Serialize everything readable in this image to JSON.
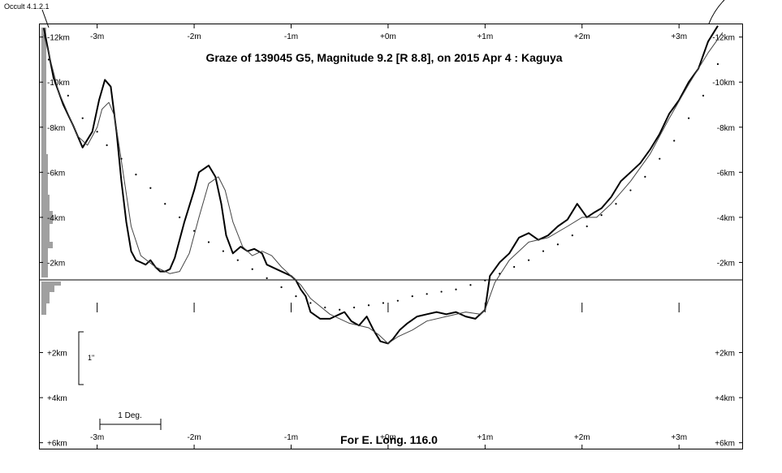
{
  "chart_data": {
    "type": "line",
    "program_label": "Occult 4.1.2.1",
    "title": "Graze of  139045 G5,  Magnitude 9.2 [R 8.8],  on 2015 Apr  4  :  Kaguya",
    "footer": "For E. Long. 116.0",
    "x_unit": "m",
    "y_unit": "km",
    "xlim": [
      -3.6,
      3.66
    ],
    "ylim": [
      -12.6,
      6.3
    ],
    "x_ticks": [
      {
        "value": -3,
        "label": "-3m"
      },
      {
        "value": -2,
        "label": "-2m"
      },
      {
        "value": -1,
        "label": "-1m"
      },
      {
        "value": 0,
        "label": "+0m"
      },
      {
        "value": 1,
        "label": "+1m"
      },
      {
        "value": 2,
        "label": "+2m"
      },
      {
        "value": 3,
        "label": "+3m"
      }
    ],
    "y_ticks": [
      {
        "value": -12,
        "label": "-12km"
      },
      {
        "value": -10,
        "label": "-10km"
      },
      {
        "value": -8,
        "label": "-8km"
      },
      {
        "value": -6,
        "label": "-6km"
      },
      {
        "value": -4,
        "label": "-4km"
      },
      {
        "value": -2,
        "label": "-2km"
      },
      {
        "value": 2,
        "label": "+2km"
      },
      {
        "value": 4,
        "label": "+4km"
      },
      {
        "value": 6,
        "label": "+6km"
      }
    ],
    "scale_bar_arcsec": "1\"",
    "scale_bar_deg": "1 Deg.",
    "series": [
      {
        "style": "heavy",
        "x": [
          -3.55,
          -3.45,
          -3.35,
          -3.25,
          -3.15,
          -3.05,
          -2.98,
          -2.92,
          -2.86,
          -2.8,
          -2.75,
          -2.7,
          -2.65,
          -2.6,
          -2.55,
          -2.5,
          -2.45,
          -2.4,
          -2.35,
          -2.3,
          -2.25,
          -2.2,
          -2.1,
          -2.0,
          -1.95,
          -1.85,
          -1.78,
          -1.72,
          -1.67,
          -1.6,
          -1.52,
          -1.45,
          -1.38,
          -1.3,
          -1.25,
          -1.15,
          -1.05,
          -1.0,
          -0.95,
          -0.9,
          -0.85,
          -0.8,
          -0.7,
          -0.6,
          -0.5,
          -0.45,
          -0.38,
          -0.3,
          -0.22,
          -0.15,
          -0.08,
          0.0,
          0.05,
          0.12,
          0.2,
          0.3,
          0.4,
          0.5,
          0.6,
          0.7,
          0.8,
          0.9,
          1.0,
          1.05,
          1.15,
          1.25,
          1.35,
          1.45,
          1.55,
          1.65,
          1.75,
          1.85,
          1.95,
          2.0,
          2.05,
          2.12,
          2.2,
          2.3,
          2.4,
          2.5,
          2.6,
          2.7,
          2.8,
          2.9,
          3.0,
          3.1,
          3.2,
          3.3,
          3.4
        ],
        "y": [
          -12.4,
          -10.2,
          -9.0,
          -8.1,
          -7.1,
          -7.8,
          -9.2,
          -10.1,
          -9.8,
          -7.8,
          -5.6,
          -3.8,
          -2.5,
          -2.1,
          -2.0,
          -1.9,
          -2.1,
          -1.8,
          -1.6,
          -1.6,
          -1.7,
          -2.2,
          -3.8,
          -5.2,
          -6.0,
          -6.3,
          -5.8,
          -4.6,
          -3.2,
          -2.4,
          -2.7,
          -2.5,
          -2.6,
          -2.4,
          -1.9,
          -1.7,
          -1.5,
          -1.4,
          -1.2,
          -0.8,
          -0.5,
          0.2,
          0.5,
          0.5,
          0.3,
          0.2,
          0.6,
          0.8,
          0.4,
          1.0,
          1.5,
          1.6,
          1.4,
          1.0,
          0.7,
          0.4,
          0.3,
          0.2,
          0.3,
          0.2,
          0.4,
          0.5,
          0.1,
          -1.4,
          -2.0,
          -2.4,
          -3.1,
          -3.3,
          -3.0,
          -3.2,
          -3.6,
          -3.9,
          -4.6,
          -4.3,
          -4.0,
          -4.2,
          -4.4,
          -4.9,
          -5.6,
          -6.0,
          -6.4,
          -7.0,
          -7.7,
          -8.6,
          -9.2,
          -10.0,
          -10.6,
          -11.8,
          -12.5
        ]
      },
      {
        "style": "smooth",
        "x": [
          -3.55,
          -3.4,
          -3.2,
          -3.1,
          -3.0,
          -2.95,
          -2.88,
          -2.82,
          -2.75,
          -2.65,
          -2.55,
          -2.4,
          -2.25,
          -2.15,
          -2.05,
          -1.95,
          -1.85,
          -1.75,
          -1.68,
          -1.6,
          -1.5,
          -1.4,
          -1.3,
          -1.2,
          -1.1,
          -1.0,
          -0.9,
          -0.8,
          -0.6,
          -0.4,
          -0.2,
          -0.1,
          0.0,
          0.1,
          0.25,
          0.4,
          0.6,
          0.8,
          0.95,
          1.0,
          1.1,
          1.25,
          1.45,
          1.65,
          1.85,
          2.0,
          2.15,
          2.3,
          2.5,
          2.7,
          2.9,
          3.1,
          3.3,
          3.45
        ],
        "y": [
          -12.1,
          -9.6,
          -7.6,
          -7.2,
          -8.0,
          -8.8,
          -9.1,
          -8.5,
          -6.5,
          -3.6,
          -2.3,
          -1.8,
          -1.5,
          -1.6,
          -2.4,
          -4.0,
          -5.5,
          -5.8,
          -5.2,
          -3.8,
          -2.7,
          -2.3,
          -2.5,
          -2.3,
          -1.8,
          -1.4,
          -1.0,
          -0.4,
          0.3,
          0.7,
          0.9,
          1.2,
          1.6,
          1.3,
          1.0,
          0.6,
          0.4,
          0.2,
          0.3,
          0.1,
          -1.1,
          -2.1,
          -2.9,
          -3.1,
          -3.6,
          -4.0,
          -4.0,
          -4.6,
          -5.6,
          -6.8,
          -8.4,
          -9.9,
          -11.3,
          -12.2
        ]
      },
      {
        "style": "dotted",
        "x": [
          -3.5,
          -3.3,
          -3.15,
          -3.0,
          -2.9,
          -2.75,
          -2.6,
          -2.45,
          -2.3,
          -2.15,
          -2.0,
          -1.85,
          -1.7,
          -1.55,
          -1.4,
          -1.25,
          -1.1,
          -0.95,
          -0.8,
          -0.65,
          -0.5,
          -0.35,
          -0.2,
          -0.05,
          0.1,
          0.25,
          0.4,
          0.55,
          0.7,
          0.85,
          1.0,
          1.15,
          1.3,
          1.45,
          1.6,
          1.75,
          1.9,
          2.05,
          2.2,
          2.35,
          2.5,
          2.65,
          2.8,
          2.95,
          3.1,
          3.25,
          3.4
        ],
        "y": [
          -11.0,
          -9.4,
          -8.4,
          -7.8,
          -7.2,
          -6.6,
          -5.9,
          -5.3,
          -4.6,
          -4.0,
          -3.4,
          -2.9,
          -2.5,
          -2.1,
          -1.7,
          -1.3,
          -0.9,
          -0.5,
          -0.2,
          0.0,
          0.1,
          0.0,
          -0.1,
          -0.2,
          -0.3,
          -0.5,
          -0.6,
          -0.7,
          -0.8,
          -1.0,
          -1.2,
          -1.5,
          -1.8,
          -2.1,
          -2.5,
          -2.8,
          -3.2,
          -3.6,
          -4.1,
          -4.6,
          -5.2,
          -5.8,
          -6.6,
          -7.4,
          -8.4,
          -9.4,
          -10.8
        ]
      }
    ]
  }
}
